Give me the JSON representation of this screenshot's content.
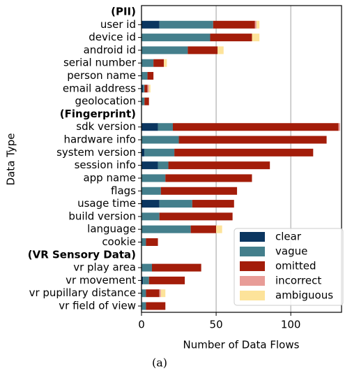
{
  "chart_data": {
    "type": "stacked_barh",
    "xlabel": "Number of Data Flows",
    "ylabel": "Data Type",
    "caption": "(a)",
    "categories": [
      "(PII)",
      "user id",
      "device id",
      "android id",
      "serial number",
      "person name",
      "email address",
      "geolocation",
      "(Fingerprint)",
      "sdk version",
      "hardware info",
      "system version",
      "session info",
      "app name",
      "flags",
      "usage time",
      "build version",
      "language",
      "cookie",
      "(VR Sensory Data)",
      "vr play area",
      "vr movement",
      "vr pupillary distance",
      "vr field of view"
    ],
    "series": [
      {
        "name": "clear",
        "color": "#0b3660",
        "values": [
          null,
          12,
          0,
          0,
          0,
          0,
          1,
          0,
          null,
          11,
          0,
          2,
          11,
          0,
          0,
          12,
          0,
          0,
          0,
          null,
          0,
          1,
          0,
          0
        ]
      },
      {
        "name": "vague",
        "color": "#447f8c",
        "values": [
          null,
          36,
          46,
          31,
          8,
          4,
          1,
          2,
          null,
          10,
          25,
          20,
          7,
          16,
          13,
          22,
          12,
          33,
          3,
          null,
          7,
          4,
          3,
          3
        ]
      },
      {
        "name": "omitted",
        "color": "#a31d0a",
        "values": [
          null,
          28,
          28,
          20,
          7,
          4,
          2,
          3,
          null,
          111,
          99,
          93,
          68,
          58,
          51,
          28,
          49,
          17,
          8,
          null,
          33,
          24,
          9,
          13
        ]
      },
      {
        "name": "incorrect",
        "color": "#e89c97",
        "values": [
          null,
          1,
          0,
          0,
          0,
          0,
          1,
          0,
          null,
          1,
          0,
          0,
          0,
          0,
          0,
          0,
          0,
          0,
          0,
          null,
          0,
          0,
          1,
          0
        ]
      },
      {
        "name": "ambiguous",
        "color": "#fde39a",
        "values": [
          null,
          2,
          5,
          4,
          2,
          0,
          1,
          0,
          null,
          0,
          0,
          0,
          0,
          0,
          0,
          0,
          0,
          4,
          0,
          null,
          0,
          0,
          3,
          0
        ]
      }
    ],
    "xlim": [
      0,
      134
    ],
    "xticks": [
      0,
      50,
      100
    ],
    "grid": true,
    "legend": "lower right"
  }
}
